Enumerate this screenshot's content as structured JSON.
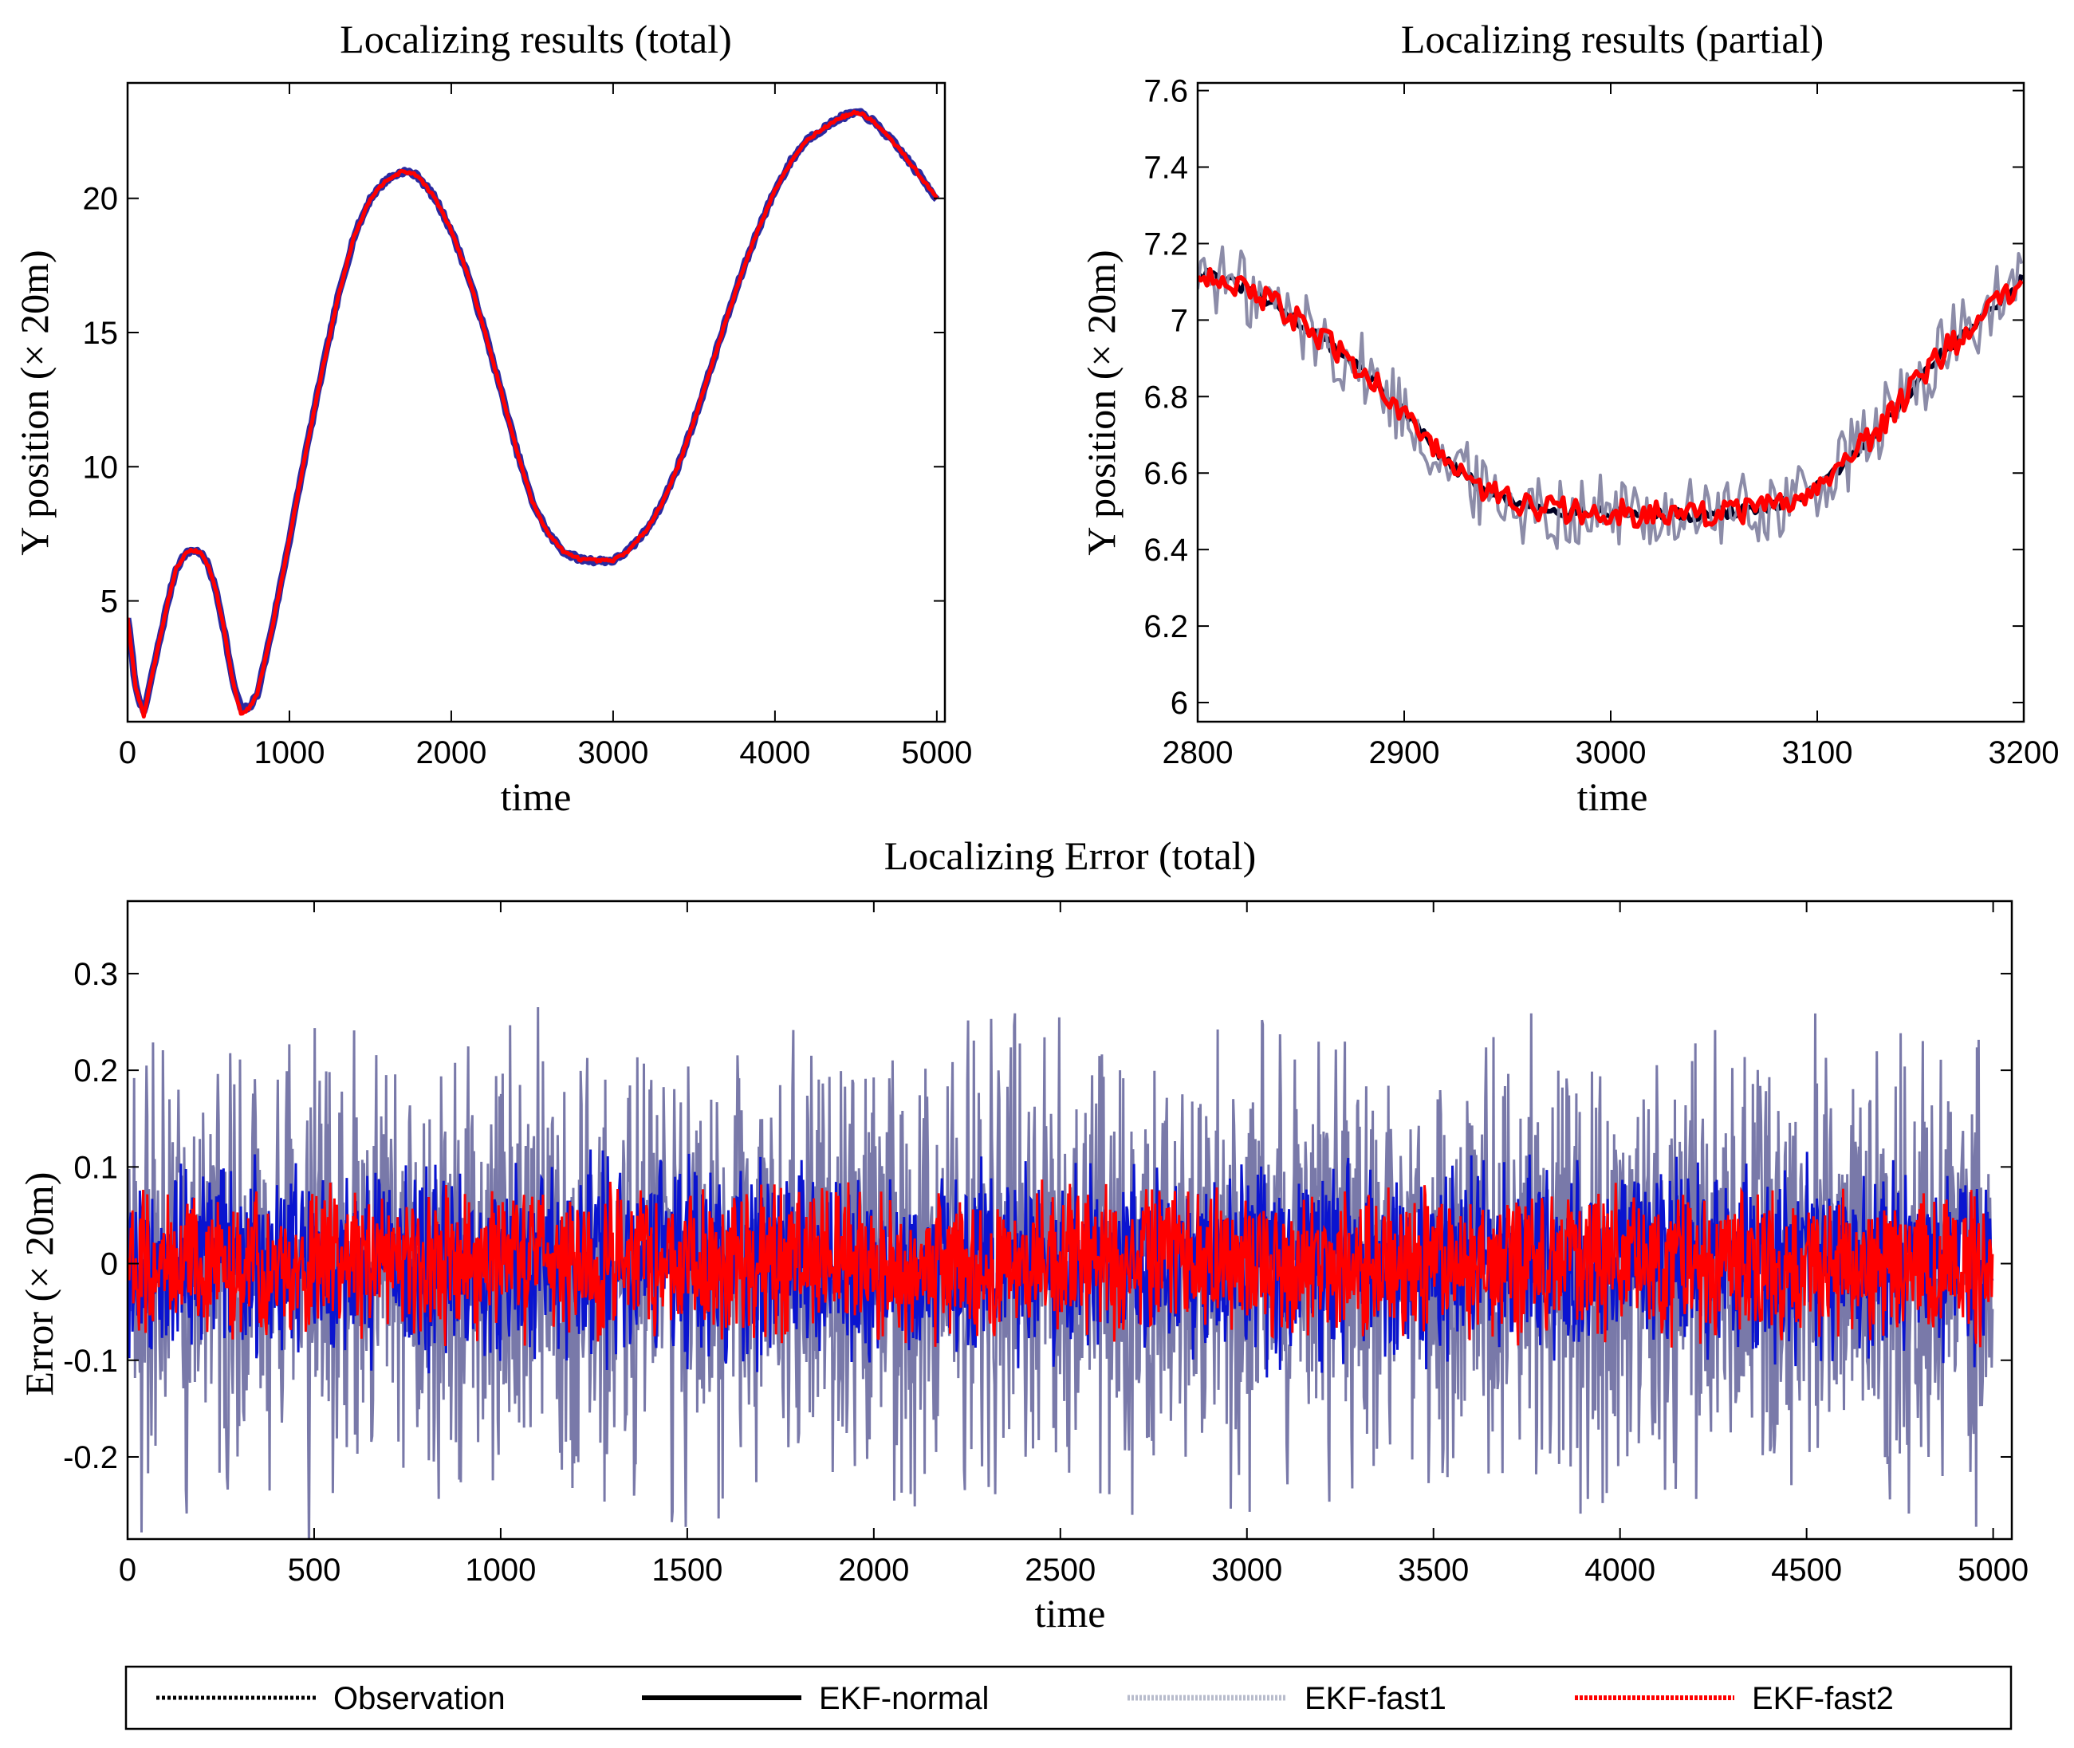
{
  "chart_data": [
    {
      "id": "total",
      "type": "line",
      "title": "Localizing results (total)",
      "xlabel": "time",
      "ylabel": "Y position (× 20m)",
      "xlim": [
        0,
        5050
      ],
      "ylim": [
        0.5,
        24.3
      ],
      "xticks": [
        0,
        1000,
        2000,
        3000,
        4000,
        5000
      ],
      "yticks": [
        5,
        10,
        15,
        20
      ],
      "x": [
        0,
        50,
        100,
        150,
        200,
        250,
        300,
        350,
        400,
        450,
        500,
        550,
        600,
        650,
        700,
        750,
        800,
        850,
        900,
        1000,
        1100,
        1200,
        1300,
        1400,
        1500,
        1600,
        1700,
        1750,
        1800,
        1900,
        2000,
        2100,
        2200,
        2300,
        2400,
        2500,
        2600,
        2700,
        2800,
        2900,
        3000,
        3100,
        3200,
        3300,
        3400,
        3500,
        3600,
        3700,
        3800,
        3900,
        4000,
        4100,
        4200,
        4300,
        4400,
        4500,
        4550,
        4600,
        4700,
        4800,
        4900,
        5000
      ],
      "series": [
        {
          "name": "EKF-fast1",
          "values": [
            4.4,
            1.8,
            0.8,
            2.2,
            3.6,
            5.0,
            6.2,
            6.7,
            6.9,
            6.8,
            6.3,
            5.3,
            3.8,
            2.0,
            1.0,
            1.0,
            1.5,
            2.8,
            4.2,
            7.3,
            10.5,
            13.5,
            16.3,
            18.6,
            20.0,
            20.7,
            21.0,
            20.95,
            20.8,
            20.0,
            18.8,
            17.2,
            15.2,
            13.0,
            10.7,
            8.7,
            7.5,
            6.8,
            6.55,
            6.5,
            6.5,
            6.9,
            7.6,
            8.6,
            10.0,
            11.7,
            13.6,
            15.5,
            17.3,
            18.9,
            20.3,
            21.4,
            22.2,
            22.6,
            23.0,
            23.2,
            23.1,
            22.9,
            22.3,
            21.6,
            20.8,
            20.0
          ]
        },
        {
          "name": "EKF-fast2",
          "values": [
            4.4,
            1.8,
            0.7,
            2.2,
            3.6,
            5.0,
            6.2,
            6.7,
            6.9,
            6.8,
            6.3,
            5.3,
            3.8,
            2.0,
            0.8,
            1.0,
            1.5,
            2.8,
            4.2,
            7.3,
            10.5,
            13.5,
            16.3,
            18.6,
            20.0,
            20.7,
            21.0,
            20.95,
            20.8,
            20.0,
            18.8,
            17.2,
            15.2,
            13.0,
            10.7,
            8.7,
            7.5,
            6.8,
            6.55,
            6.5,
            6.5,
            6.9,
            7.6,
            8.6,
            10.0,
            11.7,
            13.6,
            15.5,
            17.3,
            18.9,
            20.3,
            21.4,
            22.2,
            22.6,
            23.0,
            23.2,
            23.1,
            22.9,
            22.3,
            21.6,
            20.8,
            20.0
          ]
        }
      ]
    },
    {
      "id": "partial",
      "type": "line",
      "title": "Localizing results (partial)",
      "xlabel": "time",
      "ylabel": "Y position (× 20m)",
      "xlim": [
        2800,
        3200
      ],
      "ylim": [
        5.95,
        7.62
      ],
      "xticks": [
        2800,
        2900,
        3000,
        3100,
        3200
      ],
      "yticks": [
        6,
        6.2,
        6.4,
        6.6,
        6.8,
        7,
        7.2,
        7.4,
        7.6
      ],
      "x": [
        2800,
        2820,
        2840,
        2860,
        2880,
        2900,
        2920,
        2940,
        2960,
        2980,
        3000,
        3020,
        3040,
        3060,
        3080,
        3100,
        3120,
        3140,
        3160,
        3180,
        3200
      ],
      "series": [
        {
          "name": "EKF-normal",
          "values": [
            7.13,
            7.09,
            7.03,
            6.95,
            6.87,
            6.76,
            6.63,
            6.55,
            6.51,
            6.5,
            6.5,
            6.49,
            6.49,
            6.5,
            6.51,
            6.56,
            6.66,
            6.78,
            6.91,
            7.01,
            7.11
          ],
          "noise": 0.015,
          "color": "#000022",
          "width": 6
        },
        {
          "name": "EKF-fast1",
          "values": [
            7.13,
            7.09,
            7.03,
            6.95,
            6.87,
            6.76,
            6.63,
            6.55,
            6.51,
            6.5,
            6.5,
            6.49,
            6.49,
            6.5,
            6.51,
            6.56,
            6.66,
            6.78,
            6.91,
            7.01,
            7.11
          ],
          "noise": 0.1,
          "color": "#8c8ca8",
          "width": 4
        },
        {
          "name": "EKF-fast2",
          "values": [
            7.13,
            7.09,
            7.03,
            6.95,
            6.87,
            6.76,
            6.63,
            6.55,
            6.51,
            6.5,
            6.5,
            6.49,
            6.49,
            6.5,
            6.51,
            6.56,
            6.66,
            6.78,
            6.91,
            7.01,
            7.11
          ],
          "noise": 0.035,
          "color": "#ff0000",
          "width": 6
        }
      ]
    },
    {
      "id": "error",
      "type": "line",
      "title": "Localizing Error (total)",
      "xlabel": "time",
      "ylabel": "Error (× 20m)",
      "xlim": [
        0,
        5050
      ],
      "ylim": [
        -0.285,
        0.375
      ],
      "xticks": [
        0,
        500,
        1000,
        1500,
        2000,
        2500,
        3000,
        3500,
        4000,
        4500,
        5000
      ],
      "yticks": [
        -0.2,
        -0.1,
        0,
        0.1,
        0.2,
        0.3
      ],
      "series": [
        {
          "name": "EKF-fast1",
          "amplitude": 0.28,
          "color": "#6a6aa0",
          "width": 3
        },
        {
          "name": "EKF-normal",
          "amplitude": 0.12,
          "color": "#0a14d0",
          "width": 3
        },
        {
          "name": "EKF-fast2",
          "amplitude": 0.09,
          "color": "#ff0000",
          "width": 3
        }
      ]
    }
  ],
  "legend": [
    {
      "label": "Observation",
      "color": "#000000",
      "style": "dotted"
    },
    {
      "label": "EKF-normal",
      "color": "#000000",
      "style": "solid"
    },
    {
      "label": "EKF-fast1",
      "color": "#b8bccc",
      "style": "dotted"
    },
    {
      "label": "EKF-fast2",
      "color": "#ff0000",
      "style": "dotted"
    }
  ]
}
